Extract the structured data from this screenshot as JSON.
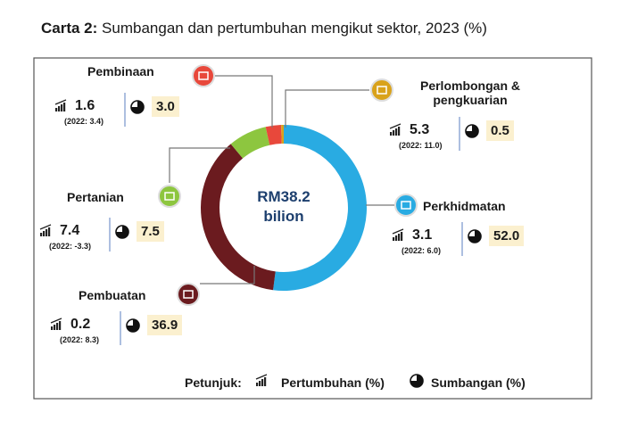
{
  "chart_data": {
    "type": "donut",
    "title_prefix": "Carta 2:",
    "title": "Sumbangan dan pertumbuhan mengikut sektor, 2023 (%)",
    "center_label": [
      "RM38.2",
      "bilion"
    ],
    "categories": [
      "Perkhidmatan",
      "Pembuatan",
      "Pertanian",
      "Pembinaan",
      "Perlombongan & pengkuarian"
    ],
    "values": [
      52.0,
      36.9,
      7.5,
      3.0,
      0.5
    ],
    "value_labels": [
      "52.0",
      "36.9",
      "7.5",
      "3.0",
      "0.5"
    ],
    "colors": [
      "#29abe2",
      "#6b1b1f",
      "#8dc63f",
      "#e8483b",
      "#d9a21b"
    ],
    "growth": [
      3.1,
      0.2,
      7.4,
      1.6,
      5.3
    ],
    "growth_2022_labels": [
      "(2022: 6.0)",
      "(2022: 8.3)",
      "(2022: -3.3)",
      "(2022: 3.4)",
      "(2022: 11.0)"
    ],
    "legend": {
      "title": "Petunjuk:",
      "growth": "Pertumbuhan (%)",
      "share": "Sumbangan (%)"
    }
  }
}
